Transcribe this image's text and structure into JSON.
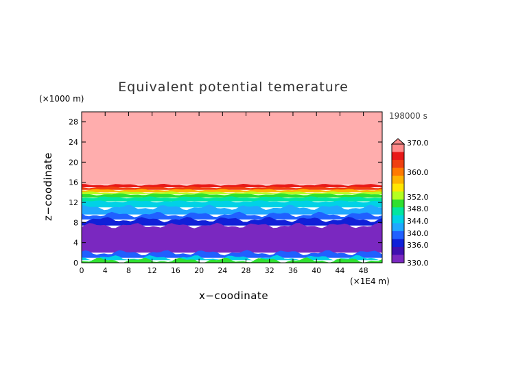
{
  "chart_data": {
    "type": "heatmap",
    "title": "Equivalent potential temerature",
    "xlabel": "x−coodinate",
    "ylabel": "z−coodinate",
    "x_unit": "(×1E4 m)",
    "y_unit": "(×1000 m)",
    "time_label": "198000 s",
    "xlim": [
      0,
      51.2
    ],
    "ylim": [
      0,
      30
    ],
    "x_ticks": [
      "0",
      "4",
      "8",
      "12",
      "16",
      "20",
      "24",
      "28",
      "32",
      "36",
      "40",
      "44",
      "48"
    ],
    "y_ticks": [
      "0",
      "4",
      "8",
      "12",
      "16",
      "20",
      "24",
      "28"
    ],
    "colorbar": {
      "min": 330,
      "max": 370,
      "labels": [
        "370.0",
        "360.0",
        "352.0",
        "348.0",
        "344.0",
        "340.0",
        "336.0",
        "330.0"
      ],
      "colors": [
        "#ff8a8a",
        "#e81818",
        "#f04010",
        "#ff7a00",
        "#ffb400",
        "#ffe600",
        "#b4ff20",
        "#30e030",
        "#00e6a0",
        "#00d2e6",
        "#20a8ff",
        "#2060ff",
        "#1020d8",
        "#4010b0",
        "#7a28c0"
      ]
    },
    "bands": [
      {
        "z_min": 15.5,
        "z_max": 30,
        "theta": 370,
        "color": "#ffadad"
      },
      {
        "z_min": 15.0,
        "z_max": 15.5,
        "theta": 362,
        "color": "#e81818"
      },
      {
        "z_min": 14.5,
        "z_max": 15.0,
        "theta": 358,
        "color": "#f04010"
      },
      {
        "z_min": 14.0,
        "z_max": 14.5,
        "theta": 354,
        "color": "#ffb400"
      },
      {
        "z_min": 13.6,
        "z_max": 14.0,
        "theta": 350,
        "color": "#b4ff20"
      },
      {
        "z_min": 13.0,
        "z_max": 13.6,
        "theta": 346,
        "color": "#30e030"
      },
      {
        "z_min": 12.2,
        "z_max": 13.0,
        "theta": 344,
        "color": "#00e6a0"
      },
      {
        "z_min": 11.0,
        "z_max": 12.2,
        "theta": 342,
        "color": "#00d2e6"
      },
      {
        "z_min": 9.6,
        "z_max": 11.0,
        "theta": 340,
        "color": "#20a8ff"
      },
      {
        "z_min": 8.6,
        "z_max": 9.6,
        "theta": 338,
        "color": "#2060ff"
      },
      {
        "z_min": 7.4,
        "z_max": 8.6,
        "theta": 336,
        "color": "#1020d8"
      },
      {
        "z_min": 2.0,
        "z_max": 7.4,
        "theta": 332,
        "color": "#7a28c0"
      },
      {
        "z_min": 1.0,
        "z_max": 2.0,
        "theta": 338,
        "color": "#2060ff"
      },
      {
        "z_min": 0.5,
        "z_max": 1.0,
        "theta": 342,
        "color": "#00d2e6"
      },
      {
        "z_min": 0.0,
        "z_max": 0.5,
        "theta": 346,
        "color": "#30e030"
      }
    ]
  }
}
